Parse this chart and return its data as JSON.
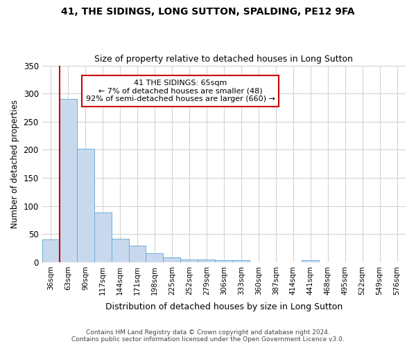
{
  "title": "41, THE SIDINGS, LONG SUTTON, SPALDING, PE12 9FA",
  "subtitle": "Size of property relative to detached houses in Long Sutton",
  "xlabel": "Distribution of detached houses by size in Long Sutton",
  "ylabel": "Number of detached properties",
  "footer_line1": "Contains HM Land Registry data © Crown copyright and database right 2024.",
  "footer_line2": "Contains public sector information licensed under the Open Government Licence v3.0.",
  "categories": [
    "36sqm",
    "63sqm",
    "90sqm",
    "117sqm",
    "144sqm",
    "171sqm",
    "198sqm",
    "225sqm",
    "252sqm",
    "279sqm",
    "306sqm",
    "333sqm",
    "360sqm",
    "387sqm",
    "414sqm",
    "441sqm",
    "468sqm",
    "495sqm",
    "522sqm",
    "549sqm",
    "576sqm"
  ],
  "values": [
    40,
    290,
    202,
    88,
    42,
    30,
    16,
    9,
    5,
    5,
    4,
    3,
    0,
    0,
    0,
    4,
    0,
    0,
    0,
    0,
    0
  ],
  "bar_color": "#c8d9ee",
  "bar_edge_color": "#6baed6",
  "vline_color": "#cc0000",
  "vline_x_index": 1,
  "annotation_line1": "41 THE SIDINGS: 65sqm",
  "annotation_line2": "← 7% of detached houses are smaller (48)",
  "annotation_line3": "92% of semi-detached houses are larger (660) →",
  "annotation_box_facecolor": "#ffffff",
  "annotation_box_edgecolor": "#cc0000",
  "ylim": [
    0,
    350
  ],
  "yticks": [
    0,
    50,
    100,
    150,
    200,
    250,
    300,
    350
  ],
  "background_color": "#ffffff",
  "grid_color": "#d3d3d3",
  "title_fontsize": 10,
  "subtitle_fontsize": 9
}
